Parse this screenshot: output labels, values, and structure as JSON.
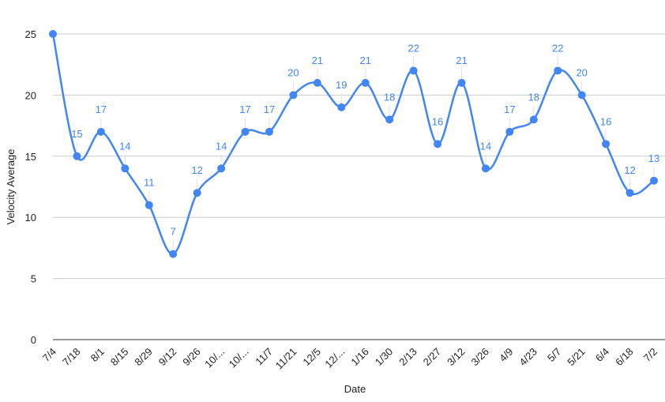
{
  "chart_data": {
    "type": "line",
    "title": "",
    "xlabel": "Date",
    "ylabel": "Velocity Average",
    "ylim": [
      0,
      25
    ],
    "yticks": [
      0,
      5,
      10,
      15,
      20,
      25
    ],
    "grid": true,
    "smooth": true,
    "data_labels": true,
    "color": "#4285f4",
    "categories": [
      "7/4",
      "7/18",
      "8/1",
      "8/15",
      "8/29",
      "9/12",
      "9/26",
      "10/...",
      "10/...",
      "11/7",
      "11/21",
      "12/5",
      "12/...",
      "1/16",
      "1/30",
      "2/13",
      "2/27",
      "3/12",
      "3/26",
      "4/9",
      "4/23",
      "5/7",
      "5/21",
      "6/4",
      "6/18",
      "7/2"
    ],
    "series": [
      {
        "values": [
          25,
          15,
          17,
          14,
          11,
          7,
          12,
          14,
          17,
          17,
          20,
          21,
          19,
          21,
          18,
          22,
          16,
          21,
          14,
          17,
          18,
          22,
          20,
          16,
          12,
          13
        ],
        "labels": [
          "",
          "15",
          "17",
          "14",
          "11",
          "7",
          "12",
          "14",
          "17",
          "17",
          "20",
          "21",
          "19",
          "21",
          "18",
          "22",
          "16",
          "21",
          "14",
          "17",
          "18",
          "22",
          "20",
          "16",
          "12",
          "13"
        ]
      }
    ]
  }
}
